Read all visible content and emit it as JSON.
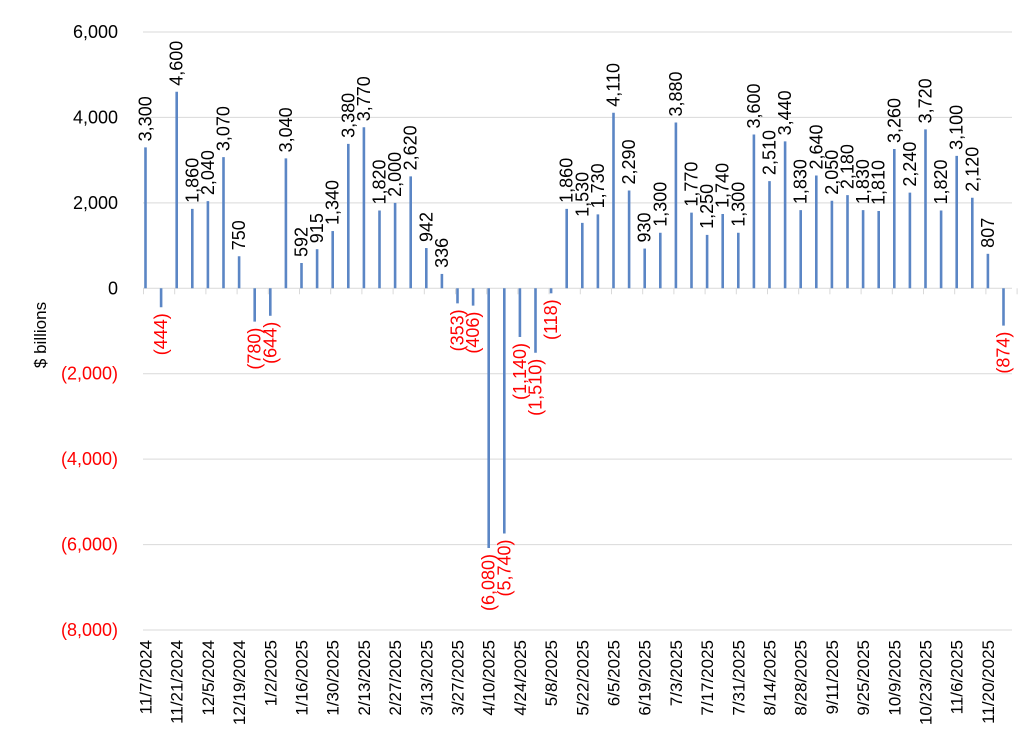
{
  "chart_data": {
    "type": "bar",
    "title": "",
    "xlabel": "",
    "ylabel": "$ billions",
    "ylim": [
      -8000,
      6000
    ],
    "yticks": [
      6000,
      4000,
      2000,
      0,
      -2000,
      -4000,
      -6000,
      -8000
    ],
    "ytick_labels": [
      "6,000",
      "4,000",
      "2,000",
      "0",
      "(2,000)",
      "(4,000)",
      "(6,000)",
      "(8,000)"
    ],
    "grid": true,
    "legend": "none",
    "x_tick_labels": [
      "11/7/2024",
      "11/21/2024",
      "12/5/2024",
      "12/19/2024",
      "1/2/2025",
      "1/16/2025",
      "1/30/2025",
      "2/13/2025",
      "2/27/2025",
      "3/13/2025",
      "3/27/2025",
      "4/10/2025",
      "4/24/2025",
      "5/8/2025",
      "5/22/2025",
      "6/5/2025",
      "6/19/2025",
      "7/3/2025",
      "7/17/2025",
      "7/31/2025",
      "8/14/2025",
      "8/28/2025",
      "9/11/2025",
      "9/25/2025",
      "10/9/2025",
      "10/23/2025",
      "11/6/2025",
      "11/20/2025"
    ],
    "x_tick_every": 2,
    "colors": {
      "bar": "#5b86c5",
      "positive_label": "#000000",
      "negative_label": "#ff0000",
      "grid": "#d9d9d9"
    },
    "values": [
      3300,
      -444,
      4600,
      1860,
      2040,
      3070,
      750,
      -780,
      -644,
      3040,
      592,
      915,
      1340,
      3380,
      3770,
      1820,
      2000,
      2620,
      942,
      336,
      -353,
      -406,
      -6080,
      -5740,
      -1140,
      -1510,
      -118,
      1860,
      1530,
      1730,
      4110,
      2290,
      930,
      1300,
      3880,
      1770,
      1250,
      1740,
      1300,
      3600,
      2510,
      3440,
      1830,
      2640,
      2050,
      2180,
      1830,
      1810,
      3260,
      2240,
      3720,
      1820,
      3100,
      2120,
      807,
      -874
    ],
    "value_labels": [
      "3,300",
      "(444)",
      "4,600",
      "1,860",
      "2,040",
      "3,070",
      "750",
      "(780)",
      "(644)",
      "3,040",
      "592",
      "915",
      "1,340",
      "3,380",
      "3,770",
      "1,820",
      "2,000",
      "2,620",
      "942",
      "336",
      "(353)",
      "(406)",
      "(6,080)",
      "(5,740)",
      "(1,140)",
      "(1,510)",
      "(118)",
      "1,860",
      "1,530",
      "1,730",
      "4,110",
      "2,290",
      "930",
      "1,300",
      "3,880",
      "1,770",
      "1,250",
      "1,740",
      "1,300",
      "3,600",
      "2,510",
      "3,440",
      "1,830",
      "2,640",
      "2,050",
      "2,180",
      "1,830",
      "1,810",
      "3,260",
      "2,240",
      "3,720",
      "1,820",
      "3,100",
      "2,120",
      "807",
      "(874)"
    ]
  }
}
